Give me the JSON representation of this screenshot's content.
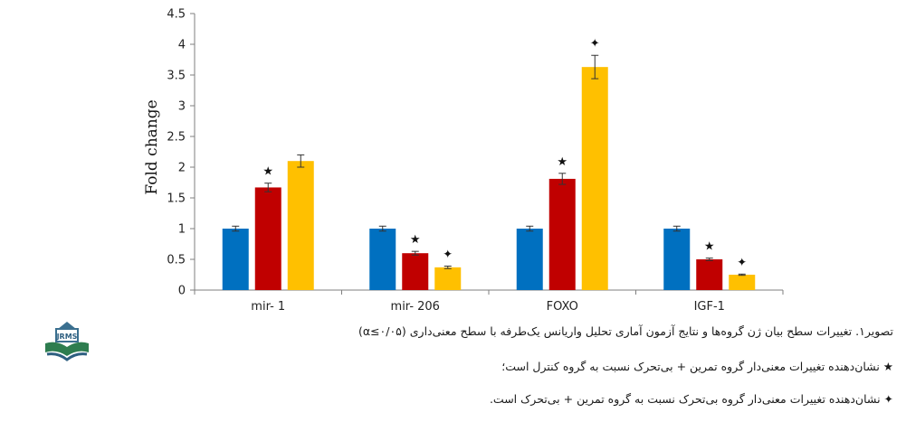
{
  "chart_data": {
    "type": "bar",
    "categories": [
      "mir- 1",
      "mir- 206",
      "FOXO",
      "IGF-1"
    ],
    "series": [
      {
        "color": "#0070C0",
        "values": [
          1.0,
          1.0,
          1.0,
          1.0
        ],
        "errors": [
          0.04,
          0.04,
          0.04,
          0.04
        ]
      },
      {
        "color": "#C00000",
        "values": [
          1.67,
          0.6,
          1.81,
          0.5
        ],
        "errors": [
          0.07,
          0.03,
          0.09,
          0.02
        ]
      },
      {
        "color": "#FFC000",
        "values": [
          2.1,
          0.37,
          3.63,
          0.25
        ],
        "errors": [
          0.1,
          0.02,
          0.19,
          0.01
        ]
      }
    ],
    "markers": [
      {
        "category": 0,
        "series": 1,
        "symbol": "★"
      },
      {
        "category": 1,
        "series": 1,
        "symbol": "★"
      },
      {
        "category": 1,
        "series": 2,
        "symbol": "✦"
      },
      {
        "category": 2,
        "series": 1,
        "symbol": "★"
      },
      {
        "category": 2,
        "series": 2,
        "symbol": "✦"
      },
      {
        "category": 3,
        "series": 1,
        "symbol": "★"
      },
      {
        "category": 3,
        "series": 2,
        "symbol": "✦"
      }
    ],
    "ylabel": "Fold change",
    "yticks": [
      "0",
      "0.5",
      "1",
      "1.5",
      "2",
      "2.5",
      "3",
      "3.5",
      "4",
      "4.5"
    ],
    "ylim": [
      0,
      4.5
    ],
    "grid": false,
    "legend": "none"
  },
  "caption": {
    "title": "تصویر۱. تغییرات سطح بیان ژن گروه‌ها و نتایج آزمون آماری تحلیل واریانس یک‌طرفه با سطح معنی‌داری (α≤۰/۰۵)",
    "note1": "★ نشان‌دهنده تغییرات معنی‌دار گروه تمرین + بی‌تحرک نسبت به گروه کنترل است؛",
    "note2": "✦ نشان‌دهنده تغییرات معنی‌دار گروه بی‌تحرک نسبت به گروه تمرین + بی‌تحرک است."
  },
  "logo": {
    "text": "JRMS",
    "icon": "journal-logo-icon"
  }
}
